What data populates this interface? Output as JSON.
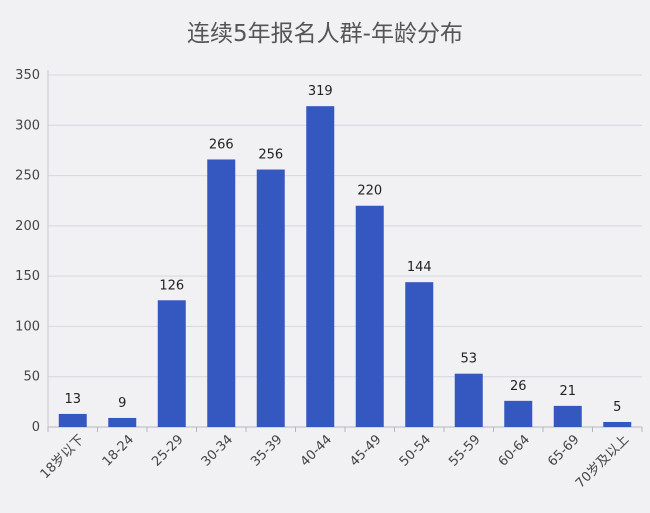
{
  "chart_data": {
    "type": "bar",
    "title": "连续5年报名人群-年龄分布",
    "categories": [
      "18岁以下",
      "18-24",
      "25-29",
      "30-34",
      "35-39",
      "40-44",
      "45-49",
      "50-54",
      "55-59",
      "60-64",
      "65-69",
      "70岁及以上"
    ],
    "values": [
      13,
      9,
      126,
      266,
      256,
      319,
      220,
      144,
      53,
      26,
      21,
      5
    ],
    "ylim": [
      0,
      350
    ],
    "yticks": [
      0,
      50,
      100,
      150,
      200,
      250,
      300,
      350
    ],
    "grid": true,
    "bar_color": "#3557c0",
    "xlabel": "",
    "ylabel": ""
  }
}
